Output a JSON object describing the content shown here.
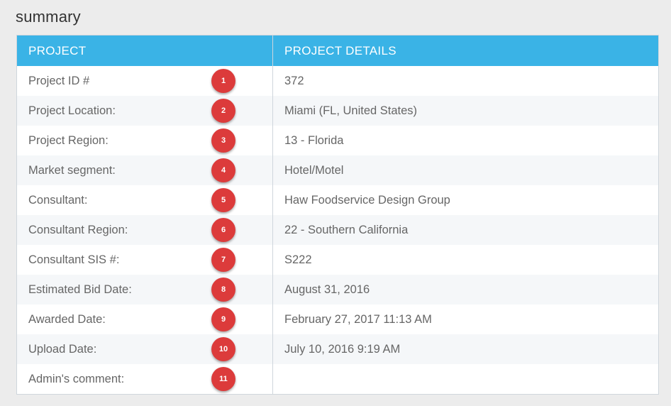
{
  "page": {
    "title": "summary"
  },
  "table": {
    "headers": [
      "PROJECT",
      "PROJECT DETAILS"
    ],
    "rows": [
      {
        "label": "Project ID #",
        "value": "372",
        "badge": "1"
      },
      {
        "label": "Project Location:",
        "value": "Miami (FL, United States)",
        "badge": "2"
      },
      {
        "label": "Project Region:",
        "value": "13 - Florida",
        "badge": "3"
      },
      {
        "label": "Market segment:",
        "value": "Hotel/Motel",
        "badge": "4"
      },
      {
        "label": "Consultant:",
        "value": "Haw Foodservice Design Group",
        "badge": "5"
      },
      {
        "label": "Consultant Region:",
        "value": "22 - Southern California",
        "badge": "6"
      },
      {
        "label": "Consultant SIS #:",
        "value": "S222",
        "badge": "7"
      },
      {
        "label": "Estimated Bid Date:",
        "value": "August 31, 2016",
        "badge": "8"
      },
      {
        "label": "Awarded Date:",
        "value": "February 27, 2017 11:13 AM",
        "badge": "9"
      },
      {
        "label": "Upload Date:",
        "value": "July 10, 2016 9:19 AM",
        "badge": "10"
      },
      {
        "label": "Admin's comment:",
        "value": "",
        "badge": "11"
      }
    ]
  },
  "colors": {
    "header_bg": "#3ab3e6",
    "badge_bg": "#dc3b3b",
    "page_bg": "#ececec"
  }
}
